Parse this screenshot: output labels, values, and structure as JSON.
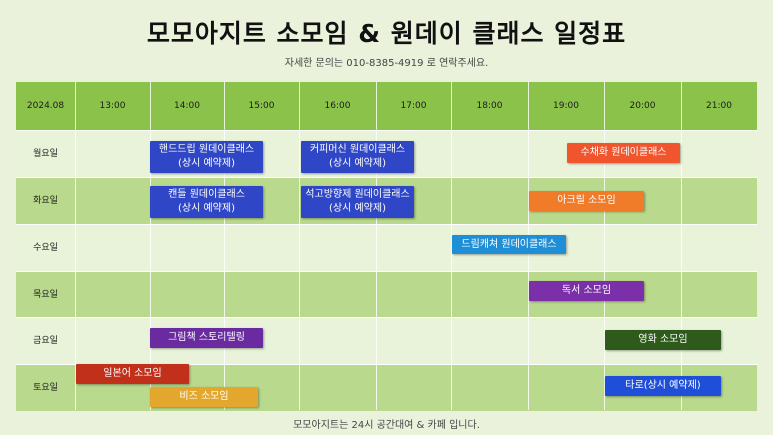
{
  "header": {
    "title": "모모아지트 소모임 & 원데이 클래스 일정표",
    "subtitle": "자세한 문의는 010-8385-4919 로 연락주세요."
  },
  "footer": {
    "text": "모모아지트는 24시 공간대여 & 카페 입니다."
  },
  "grid": {
    "corner": "2024.08",
    "times": [
      "13:00",
      "14:00",
      "15:00",
      "16:00",
      "17:00",
      "18:00",
      "19:00",
      "20:00",
      "21:00"
    ],
    "days": [
      "월요일",
      "화요일",
      "수요일",
      "목요일",
      "금요일",
      "토요일"
    ]
  },
  "events": [
    {
      "name": "hand-drip-class",
      "line1": "핸드드립 원데이클래스",
      "line2": "(상시 예약제)",
      "color": "#2f47c6"
    },
    {
      "name": "coffee-machine-class",
      "line1": "커피머신 원데이클래스",
      "line2": "(상시 예약제)",
      "color": "#2f47c6"
    },
    {
      "name": "embroidery-class",
      "line1": "수채화 원데이클래스",
      "line2": "",
      "color": "#f0552e"
    },
    {
      "name": "candle-class",
      "line1": "캔들 원데이클래스",
      "line2": "(상시 예약제)",
      "color": "#2f47c6"
    },
    {
      "name": "diffuser-class",
      "line1": "석고방향제 원데이클래스",
      "line2": "(상시 예약제)",
      "color": "#2f47c6"
    },
    {
      "name": "acrylic-club",
      "line1": "아크릴 소모임",
      "line2": "",
      "color": "#f07b28"
    },
    {
      "name": "dreamcatcher-class",
      "line1": "드림캐쳐 원데이클래스",
      "line2": "",
      "color": "#1e8fd6"
    },
    {
      "name": "reading-club",
      "line1": "독서 소모임",
      "line2": "",
      "color": "#7b2fa8"
    },
    {
      "name": "picturebook-club",
      "line1": "그림책 스토리텔링",
      "line2": "",
      "color": "#6a2aa0"
    },
    {
      "name": "movie-club",
      "line1": "영화 소모임",
      "line2": "",
      "color": "#2e5a1c"
    },
    {
      "name": "japanese-club",
      "line1": "일본어 소모임",
      "line2": "",
      "color": "#c0301a"
    },
    {
      "name": "beads-club",
      "line1": "비즈 소모임",
      "line2": "",
      "color": "#e2a72c"
    },
    {
      "name": "tarot-booking",
      "line1": "타로(상시 예약제)",
      "line2": "",
      "color": "#1f4fd8"
    }
  ]
}
